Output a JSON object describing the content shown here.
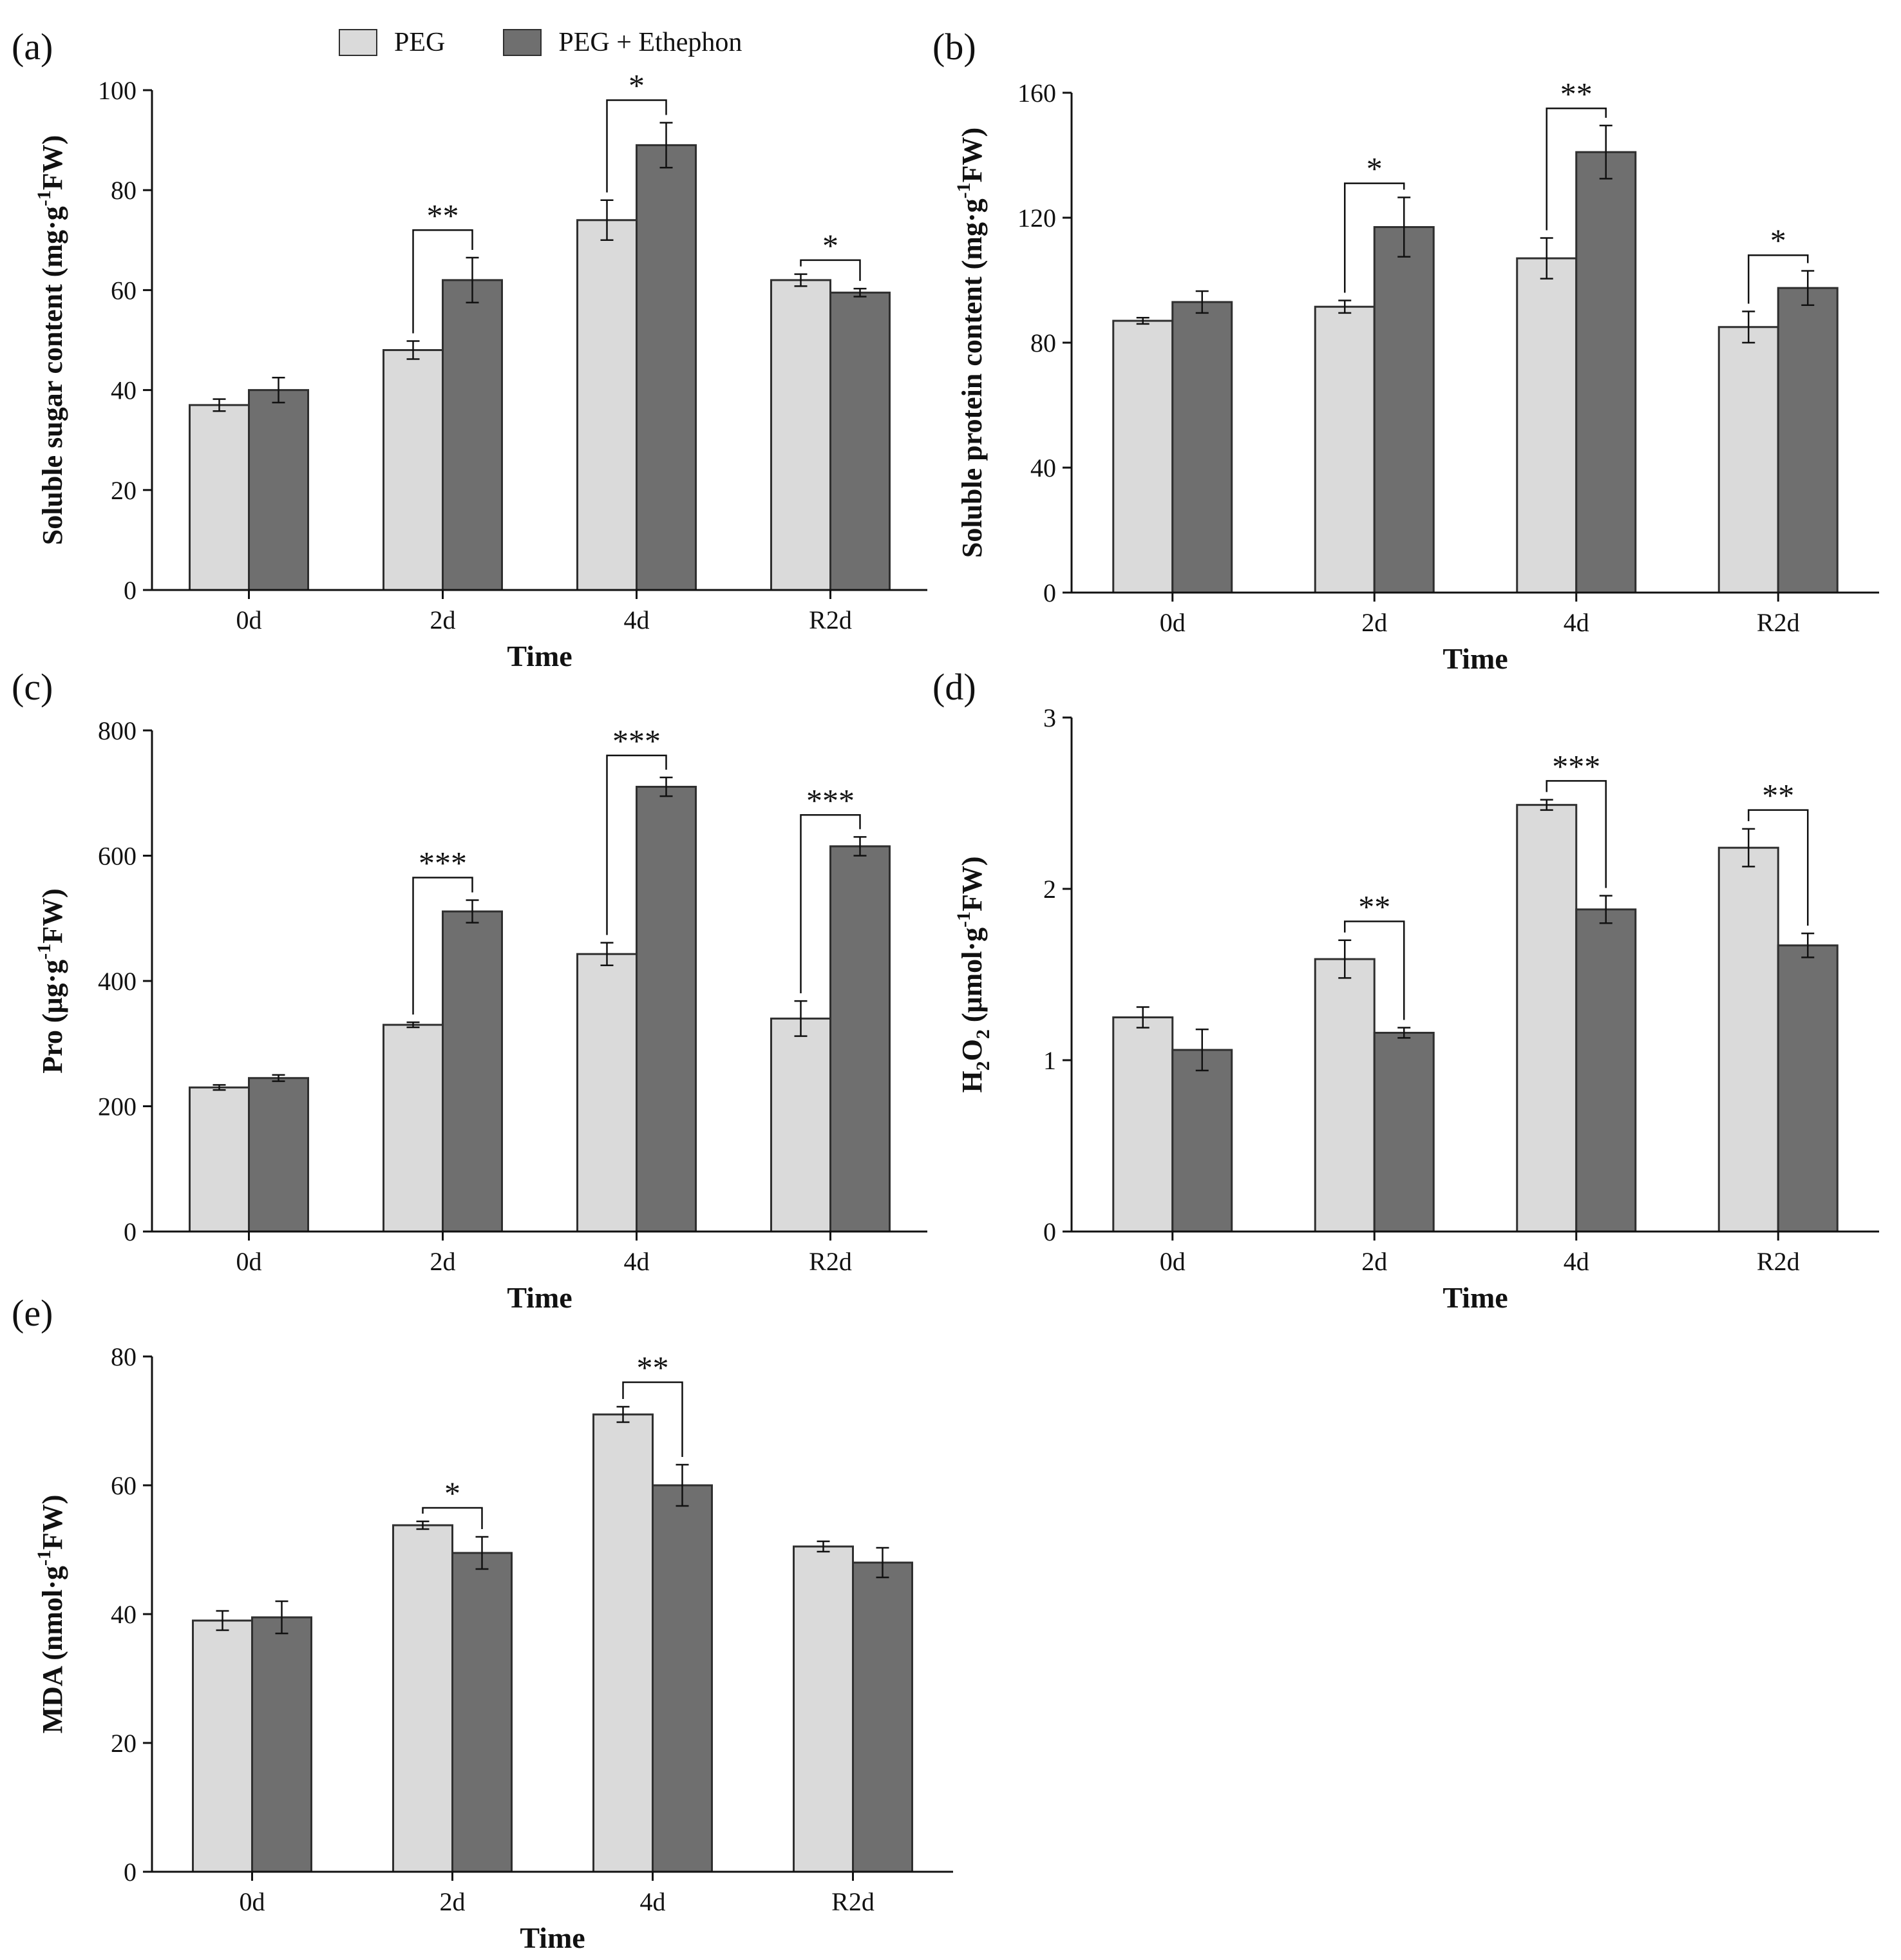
{
  "legend": {
    "items": [
      {
        "label": "PEG",
        "color": "#dadada"
      },
      {
        "label": "PEG + Ethephon",
        "color": "#6f6f6f"
      }
    ]
  },
  "chart_data": [
    {
      "panel_label": "(a)",
      "type": "bar",
      "categories": [
        "0d",
        "2d",
        "4d",
        "R2d"
      ],
      "series": [
        {
          "name": "PEG",
          "values": [
            37,
            48,
            74,
            62
          ],
          "errors": [
            1.2,
            1.8,
            4,
            1.2
          ]
        },
        {
          "name": "PEG + Ethephon",
          "values": [
            40,
            62,
            89,
            59.5
          ],
          "errors": [
            2.5,
            4.5,
            4.5,
            0.8
          ]
        }
      ],
      "ylabel": "Soluble sugar content (mg·g-1FW)",
      "ylabel_parts": {
        "pre": "Soluble sugar content (mg·g",
        "sup": "-1",
        "post": "FW)"
      },
      "xlabel": "Time",
      "ylim": [
        0,
        100
      ],
      "yticks": [
        0,
        20,
        40,
        60,
        80,
        100
      ],
      "significance": [
        {
          "category": "2d",
          "label": "**",
          "bracket_y": 72
        },
        {
          "category": "4d",
          "label": "*",
          "bracket_y": 98
        },
        {
          "category": "R2d",
          "label": "*",
          "bracket_y": 66
        }
      ]
    },
    {
      "panel_label": "(b)",
      "type": "bar",
      "categories": [
        "0d",
        "2d",
        "4d",
        "R2d"
      ],
      "series": [
        {
          "name": "PEG",
          "values": [
            87,
            91.5,
            107,
            85
          ],
          "errors": [
            1,
            2,
            6.5,
            5
          ]
        },
        {
          "name": "PEG + Ethephon",
          "values": [
            93,
            117,
            141,
            97.5
          ],
          "errors": [
            3.5,
            9.5,
            8.5,
            5.5
          ]
        }
      ],
      "ylabel": "Soluble protein content (mg·g-1FW)",
      "ylabel_parts": {
        "pre": "Soluble protein content (mg·g",
        "sup": "-1",
        "post": "FW)"
      },
      "xlabel": "Time",
      "ylim": [
        0,
        160
      ],
      "yticks": [
        0,
        40,
        80,
        120,
        160
      ],
      "significance": [
        {
          "category": "2d",
          "label": "*",
          "bracket_y": 131
        },
        {
          "category": "4d",
          "label": "**",
          "bracket_y": 155
        },
        {
          "category": "R2d",
          "label": "*",
          "bracket_y": 108
        }
      ]
    },
    {
      "panel_label": "(c)",
      "type": "bar",
      "categories": [
        "0d",
        "2d",
        "4d",
        "R2d"
      ],
      "series": [
        {
          "name": "PEG",
          "values": [
            230,
            330,
            443,
            340
          ],
          "errors": [
            4,
            4,
            18,
            28
          ]
        },
        {
          "name": "PEG + Ethephon",
          "values": [
            245,
            511,
            710,
            615
          ],
          "errors": [
            5,
            18,
            15,
            15
          ]
        }
      ],
      "ylabel": "Pro (μg·g-1FW)",
      "ylabel_parts": {
        "pre": "Pro (μg·g",
        "sup": "-1",
        "post": "FW)"
      },
      "xlabel": "Time",
      "ylim": [
        0,
        800
      ],
      "yticks": [
        0,
        200,
        400,
        600,
        800
      ],
      "significance": [
        {
          "category": "2d",
          "label": "***",
          "bracket_y": 565
        },
        {
          "category": "4d",
          "label": "***",
          "bracket_y": 760
        },
        {
          "category": "R2d",
          "label": "***",
          "bracket_y": 665
        }
      ]
    },
    {
      "panel_label": "(d)",
      "type": "bar",
      "categories": [
        "0d",
        "2d",
        "4d",
        "R2d"
      ],
      "series": [
        {
          "name": "PEG",
          "values": [
            1.25,
            1.59,
            2.49,
            2.24
          ],
          "errors": [
            0.06,
            0.11,
            0.03,
            0.11
          ]
        },
        {
          "name": "PEG + Ethephon",
          "values": [
            1.06,
            1.16,
            1.88,
            1.67
          ],
          "errors": [
            0.12,
            0.03,
            0.08,
            0.07
          ]
        }
      ],
      "ylabel": "H2O2 (μmol·g-1FW)",
      "ylabel_parts": {
        "pre": "H",
        "sub1": "2",
        "mid": "O",
        "sub2": "2",
        "mid2": " (μmol·g",
        "sup": "-1",
        "post": "FW)"
      },
      "xlabel": "Time",
      "ylim": [
        0,
        3
      ],
      "yticks": [
        0,
        1,
        2,
        3
      ],
      "significance": [
        {
          "category": "2d",
          "label": "**",
          "bracket_y": 1.81
        },
        {
          "category": "4d",
          "label": "***",
          "bracket_y": 2.63
        },
        {
          "category": "R2d",
          "label": "**",
          "bracket_y": 2.46
        }
      ]
    },
    {
      "panel_label": "(e)",
      "type": "bar",
      "categories": [
        "0d",
        "2d",
        "4d",
        "R2d"
      ],
      "series": [
        {
          "name": "PEG",
          "values": [
            39,
            53.8,
            71,
            50.5
          ],
          "errors": [
            1.5,
            0.6,
            1.2,
            0.8
          ]
        },
        {
          "name": "PEG + Ethephon",
          "values": [
            39.5,
            49.5,
            60,
            48
          ],
          "errors": [
            2.5,
            2.5,
            3.2,
            2.3
          ]
        }
      ],
      "ylabel": "MDA (nmol·g-1FW)",
      "ylabel_parts": {
        "pre": "MDA (nmol·g",
        "sup": "-1",
        "post": "FW)"
      },
      "xlabel": "Time",
      "ylim": [
        0,
        80
      ],
      "yticks": [
        0,
        20,
        40,
        60,
        80
      ],
      "significance": [
        {
          "category": "2d",
          "label": "*",
          "bracket_y": 56.5
        },
        {
          "category": "4d",
          "label": "**",
          "bracket_y": 76
        }
      ]
    }
  ]
}
